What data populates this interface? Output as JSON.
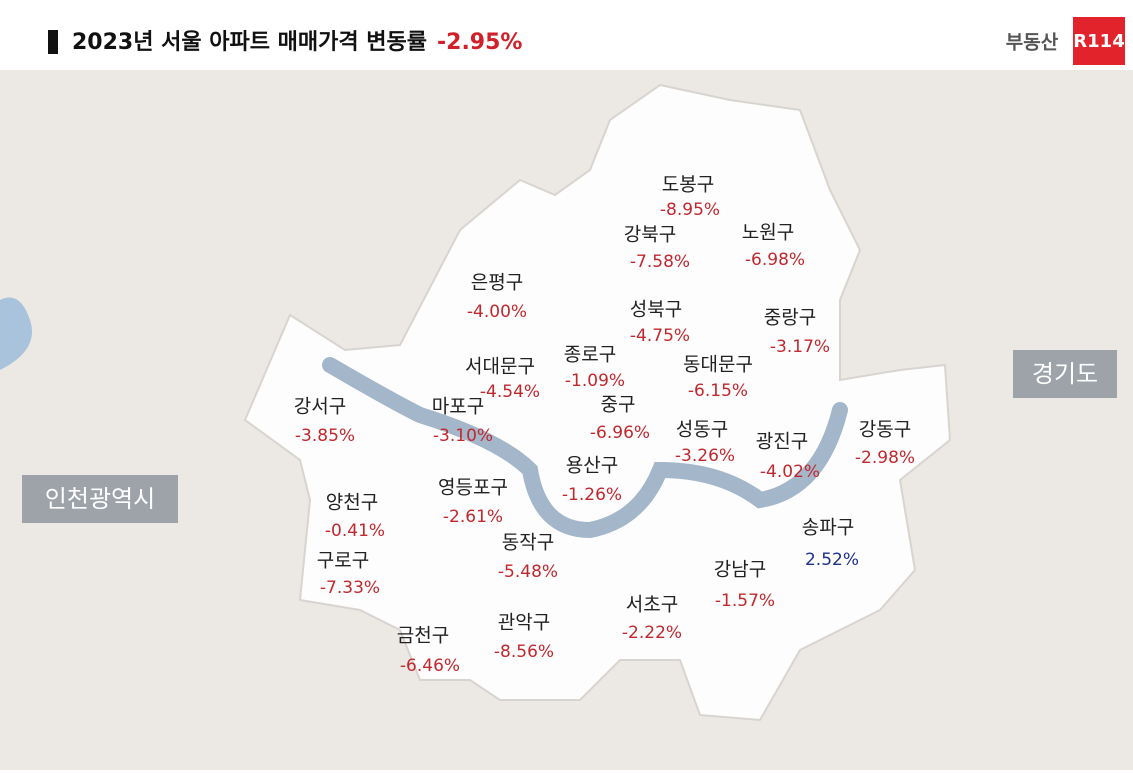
{
  "header": {
    "title": "2023년 서울 아파트 매매가격 변동률",
    "highlight": "-2.95%"
  },
  "logo": {
    "text": "부동산",
    "badge": "R114"
  },
  "regions": [
    {
      "label": "경기도"
    },
    {
      "label": "인천광역시"
    }
  ],
  "districts": [
    {
      "name": "도봉구",
      "value": "-8.95%",
      "color": "#c0282e"
    },
    {
      "name": "강북구",
      "value": "-7.58%",
      "color": "#c0282e"
    },
    {
      "name": "노원구",
      "value": "-6.98%",
      "color": "#c0282e"
    },
    {
      "name": "은평구",
      "value": "-4.00%",
      "color": "#c0282e"
    },
    {
      "name": "성북구",
      "value": "-4.75%",
      "color": "#c0282e"
    },
    {
      "name": "중랑구",
      "value": "-3.17%",
      "color": "#c0282e"
    },
    {
      "name": "서대문구",
      "value": "-4.54%",
      "color": "#c0282e"
    },
    {
      "name": "종로구",
      "value": "-1.09%",
      "color": "#c0282e"
    },
    {
      "name": "동대문구",
      "value": "-6.15%",
      "color": "#c0282e"
    },
    {
      "name": "강서구",
      "value": "-3.85%",
      "color": "#c0282e"
    },
    {
      "name": "마포구",
      "value": "-3.10%",
      "color": "#c0282e"
    },
    {
      "name": "중구",
      "value": "-6.96%",
      "color": "#c0282e"
    },
    {
      "name": "성동구",
      "value": "-3.26%",
      "color": "#c0282e"
    },
    {
      "name": "광진구",
      "value": "-4.02%",
      "color": "#c0282e"
    },
    {
      "name": "강동구",
      "value": "-2.98%",
      "color": "#c0282e"
    },
    {
      "name": "용산구",
      "value": "-1.26%",
      "color": "#c0282e"
    },
    {
      "name": "영등포구",
      "value": "-2.61%",
      "color": "#c0282e"
    },
    {
      "name": "양천구",
      "value": "-0.41%",
      "color": "#c0282e"
    },
    {
      "name": "동작구",
      "value": "-5.48%",
      "color": "#c0282e"
    },
    {
      "name": "송파구",
      "value": "2.52%",
      "color": "#1f2f8f"
    },
    {
      "name": "강남구",
      "value": "-1.57%",
      "color": "#c0282e"
    },
    {
      "name": "구로구",
      "value": "-7.33%",
      "color": "#c0282e"
    },
    {
      "name": "서초구",
      "value": "-2.22%",
      "color": "#c0282e"
    },
    {
      "name": "관악구",
      "value": "-8.56%",
      "color": "#c0282e"
    },
    {
      "name": "금천구",
      "value": "-6.46%",
      "color": "#c0282e"
    }
  ]
}
